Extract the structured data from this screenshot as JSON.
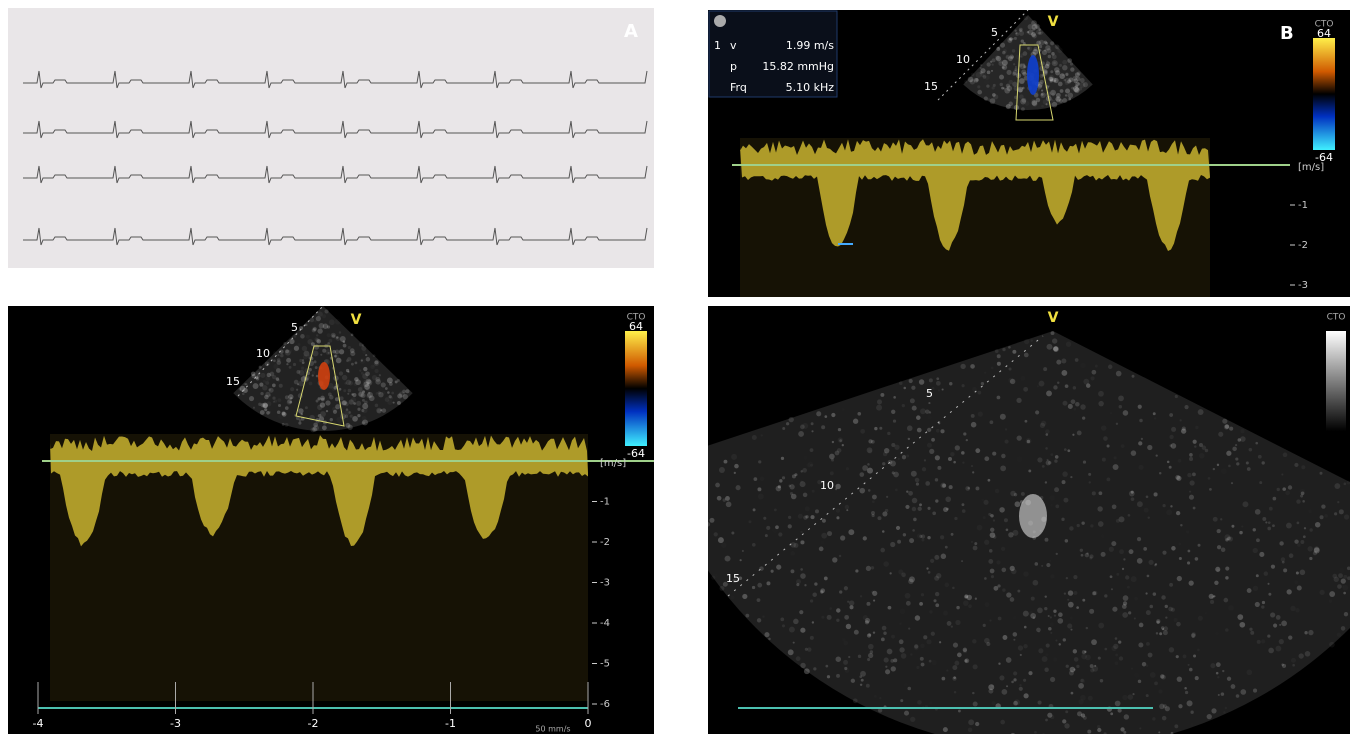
{
  "panels": [
    {
      "label": "A"
    },
    {
      "label": "B",
      "scale_name": "CTO",
      "scale_top": 64,
      "scale_bottom": -64,
      "probe_marker": "V",
      "depths": [
        5,
        10,
        15
      ],
      "measurements": [
        {
          "index": 1,
          "name": "v",
          "value": "1.99 m/s"
        },
        {
          "name": "p",
          "value": "15.82 mmHg"
        },
        {
          "name": "Frq",
          "value": "5.10 kHz"
        }
      ],
      "velocity_unit": "[m/s]",
      "velocity_ticks": [
        -1,
        -2,
        -3
      ]
    },
    {
      "scale_name": "CTO",
      "scale_top": 64,
      "scale_bottom": -64,
      "probe_marker": "V",
      "depths": [
        5,
        10,
        15
      ],
      "velocity_unit": "[m/s]",
      "velocity_ticks": [
        -1,
        -2,
        -3,
        -4,
        -5,
        -6
      ],
      "time_ticks": [
        -4,
        -3,
        -2,
        -1,
        0
      ],
      "sweep_speed": "50 mm/s"
    },
    {
      "scale_name": "CTO",
      "probe_marker": "V",
      "depths": [
        5,
        10,
        15
      ]
    }
  ]
}
